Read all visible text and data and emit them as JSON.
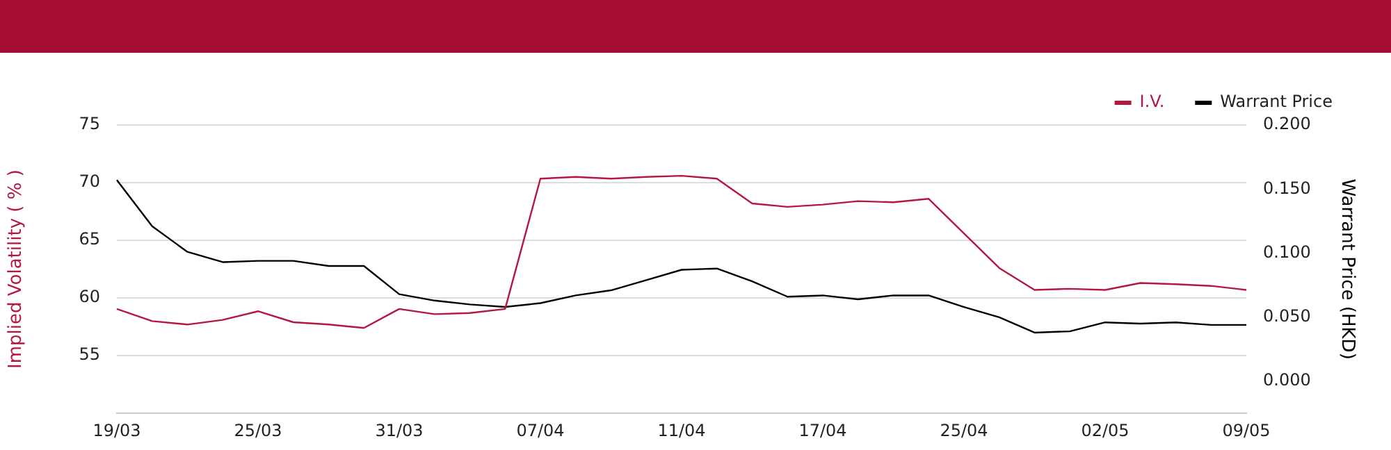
{
  "chart_data": {
    "type": "line",
    "categories": [
      "19/03",
      null,
      null,
      null,
      "25/03",
      null,
      null,
      null,
      "31/03",
      null,
      null,
      null,
      "07/04",
      null,
      null,
      null,
      "11/04",
      null,
      null,
      null,
      "17/04",
      null,
      null,
      null,
      "25/04",
      null,
      null,
      null,
      "02/05",
      null,
      null,
      null,
      "09/05"
    ],
    "ylabel": "Implied Volatility ( % )",
    "y2label": "Warrant Price (HKD)",
    "series": [
      {
        "name": "I.V.",
        "color": "#b5173f",
        "values": [
          59.05,
          58.0,
          57.7,
          58.1,
          58.85,
          57.9,
          57.7,
          57.4,
          59.05,
          58.6,
          58.7,
          59.05,
          70.35,
          70.5,
          70.35,
          70.5,
          70.6,
          70.35,
          68.2,
          67.9,
          68.1,
          68.4,
          68.3,
          68.6,
          65.6,
          62.6,
          60.7,
          60.8,
          60.7,
          61.3,
          61.2,
          61.05,
          60.7
        ]
      },
      {
        "name": "Warrant Price",
        "color": "#000000",
        "axis": "y2",
        "values": [
          0.157,
          0.121,
          0.101,
          0.093,
          0.094,
          0.094,
          0.09,
          0.09,
          0.068,
          0.063,
          0.06,
          0.058,
          0.061,
          0.067,
          0.071,
          0.079,
          0.087,
          0.088,
          0.078,
          0.066,
          0.067,
          0.064,
          0.067,
          0.067,
          0.058,
          0.05,
          0.038,
          0.039,
          0.046,
          0.045,
          0.046,
          0.044,
          0.044
        ]
      }
    ],
    "ylim": [
      50,
      75
    ],
    "yticks": [
      55,
      60,
      65,
      70,
      75
    ],
    "y2lim": [
      -0.025,
      0.2
    ],
    "y2ticks": [
      {
        "value": 0,
        "label": "0.000"
      },
      {
        "value": 0.05,
        "label": "0.050"
      },
      {
        "value": 0.1,
        "label": "0.100"
      },
      {
        "value": 0.15,
        "label": "0.150"
      },
      {
        "value": 0.2,
        "label": "0.200"
      }
    ],
    "grid": "y",
    "legend": "top right",
    "marker": "none",
    "line_style": "solid"
  }
}
